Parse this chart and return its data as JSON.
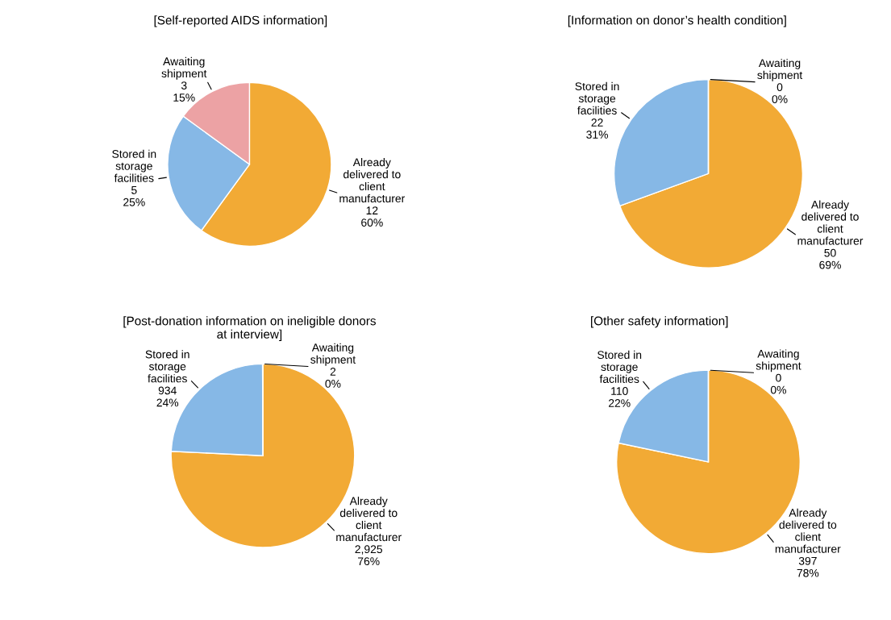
{
  "chart_data": [
    {
      "type": "pie",
      "title": "[Self-reported AIDS information]",
      "categories": [
        "Already\ndelivered to\nclient\nmanufacturer",
        "Stored in\nstorage\nfacilities",
        "Awaiting\nshipment"
      ],
      "values": [
        12,
        5,
        3
      ],
      "value_labels": [
        "12\n60%",
        "5\n25%",
        "3\n15%"
      ],
      "colors": [
        "#f2aa35",
        "#86b8e6",
        "#eca2a4"
      ]
    },
    {
      "type": "pie",
      "title": "[Information on donor’s health condition]",
      "categories": [
        "Already\ndelivered to\nclient\nmanufacturer",
        "Stored in\nstorage\nfacilities",
        "Awaiting\nshipment"
      ],
      "values": [
        50,
        22,
        0
      ],
      "value_labels": [
        "50\n69%",
        "22\n31%",
        "0\n0%"
      ],
      "colors": [
        "#f2aa35",
        "#86b8e6",
        "#eca2a4"
      ]
    },
    {
      "type": "pie",
      "title": "[Post-donation information on ineligible donors\nat interview]",
      "categories": [
        "Already\ndelivered to\nclient\nmanufacturer",
        "Stored in\nstorage\nfacilities",
        "Awaiting\nshipment"
      ],
      "values": [
        2925,
        934,
        2
      ],
      "value_labels": [
        "2,925\n76%",
        "934\n24%",
        "2\n0%"
      ],
      "colors": [
        "#f2aa35",
        "#86b8e6",
        "#eca2a4"
      ]
    },
    {
      "type": "pie",
      "title": "[Other safety information]",
      "categories": [
        "Already\ndelivered to\nclient\nmanufacturer",
        "Stored in\nstorage\nfacilities",
        "Awaiting\nshipment"
      ],
      "values": [
        397,
        110,
        0
      ],
      "value_labels": [
        "397\n78%",
        "110\n22%",
        "0\n0%"
      ],
      "colors": [
        "#f2aa35",
        "#86b8e6",
        "#eca2a4"
      ]
    }
  ]
}
